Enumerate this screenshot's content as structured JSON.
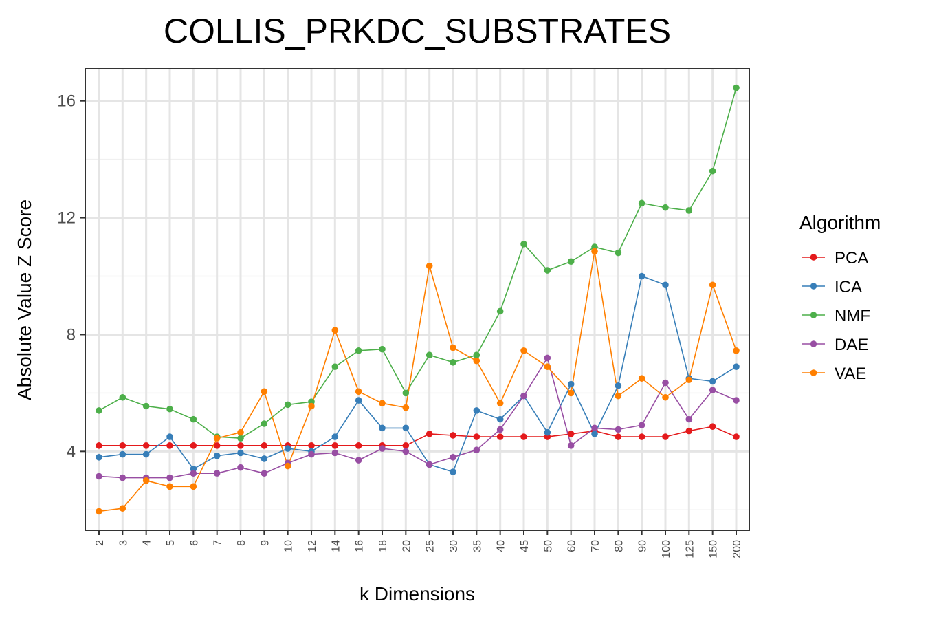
{
  "chart_data": {
    "type": "line",
    "title": "COLLIS_PRKDC_SUBSTRATES",
    "xlabel": "k Dimensions",
    "ylabel": "Absolute Value Z Score",
    "categories": [
      "2",
      "3",
      "4",
      "5",
      "6",
      "7",
      "8",
      "9",
      "10",
      "12",
      "14",
      "16",
      "18",
      "20",
      "25",
      "30",
      "35",
      "40",
      "45",
      "50",
      "60",
      "70",
      "80",
      "90",
      "100",
      "125",
      "150",
      "200"
    ],
    "yticks": [
      4,
      8,
      12,
      16
    ],
    "ylim": [
      1.3,
      17.1
    ],
    "grid": true,
    "legend": {
      "title": "Algorithm",
      "position": "right"
    },
    "series": [
      {
        "name": "PCA",
        "color": "#E41A1C",
        "values": [
          4.2,
          4.2,
          4.2,
          4.2,
          4.2,
          4.2,
          4.2,
          4.2,
          4.2,
          4.2,
          4.2,
          4.2,
          4.2,
          4.2,
          4.6,
          4.55,
          4.5,
          4.5,
          4.5,
          4.5,
          4.6,
          4.7,
          4.5,
          4.5,
          4.5,
          4.7,
          4.85,
          4.5
        ]
      },
      {
        "name": "ICA",
        "color": "#377EB8",
        "values": [
          3.8,
          3.9,
          3.9,
          4.5,
          3.4,
          3.85,
          3.95,
          3.75,
          4.1,
          4.0,
          4.5,
          5.75,
          4.8,
          4.8,
          3.55,
          3.3,
          5.4,
          5.1,
          5.9,
          4.65,
          6.3,
          4.6,
          6.25,
          10.0,
          9.7,
          6.5,
          6.4,
          6.9
        ]
      },
      {
        "name": "NMF",
        "color": "#4DAF4A",
        "values": [
          5.4,
          5.85,
          5.55,
          5.45,
          5.1,
          4.5,
          4.45,
          4.95,
          5.6,
          5.7,
          6.9,
          7.45,
          7.5,
          6.0,
          7.3,
          7.05,
          7.3,
          8.8,
          11.1,
          10.2,
          10.5,
          11.0,
          10.8,
          12.5,
          12.35,
          12.25,
          13.6,
          16.45
        ]
      },
      {
        "name": "DAE",
        "color": "#984EA3",
        "values": [
          3.15,
          3.1,
          3.1,
          3.1,
          3.25,
          3.25,
          3.45,
          3.25,
          3.6,
          3.9,
          3.95,
          3.7,
          4.1,
          4.0,
          3.55,
          3.8,
          4.05,
          4.75,
          5.9,
          7.2,
          4.2,
          4.8,
          4.75,
          4.9,
          6.35,
          5.1,
          6.1,
          5.75
        ]
      },
      {
        "name": "VAE",
        "color": "#FF7F00",
        "values": [
          1.95,
          2.05,
          3.0,
          2.8,
          2.8,
          4.45,
          4.65,
          6.05,
          3.5,
          5.55,
          8.15,
          6.05,
          5.65,
          5.5,
          10.35,
          7.55,
          7.1,
          5.65,
          7.45,
          6.9,
          6.0,
          10.85,
          5.9,
          6.5,
          5.85,
          6.45,
          9.7,
          7.45
        ]
      }
    ]
  }
}
